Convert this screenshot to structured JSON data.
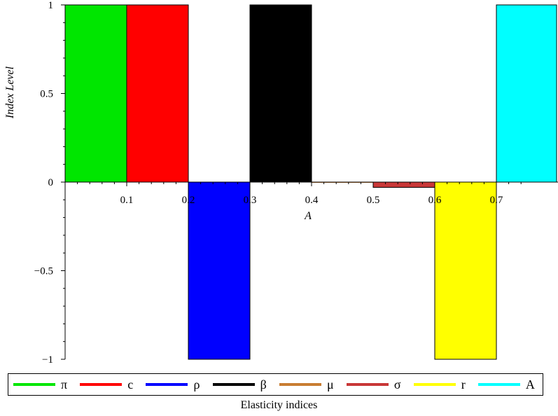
{
  "chart_data": {
    "type": "bar",
    "xlabel": "A",
    "ylabel": "Index Level",
    "xlim": [
      0,
      0.75
    ],
    "ylim": [
      -1,
      1
    ],
    "x_ticks": [
      "0.1",
      "0.2",
      "0.3",
      "0.4",
      "0.5",
      "0.6",
      "0.7"
    ],
    "y_ticks": [
      "1",
      "0.5",
      "0",
      "−0.5",
      "−1"
    ],
    "series": [
      {
        "name": "π",
        "x_start": 0.0,
        "x_end": 0.1,
        "value": 1,
        "color": "#00e600"
      },
      {
        "name": "c",
        "x_start": 0.1,
        "x_end": 0.2,
        "value": 1,
        "color": "#ff0000"
      },
      {
        "name": "ρ",
        "x_start": 0.2,
        "x_end": 0.3,
        "value": -1,
        "color": "#0000ff"
      },
      {
        "name": "β",
        "x_start": 0.3,
        "x_end": 0.4,
        "value": 1,
        "color": "#000000"
      },
      {
        "name": "μ",
        "x_start": 0.4,
        "x_end": 0.5,
        "value": 0,
        "color": "#c87d32"
      },
      {
        "name": "σ",
        "x_start": 0.5,
        "x_end": 0.6,
        "value": -0.03,
        "color": "#c83737"
      },
      {
        "name": "r",
        "x_start": 0.6,
        "x_end": 0.7,
        "value": -1,
        "color": "#ffff00"
      },
      {
        "name": "A",
        "x_start": 0.7,
        "x_end": 0.8,
        "value": 1,
        "color": "#00ffff"
      }
    ],
    "legend_title": "Elasticity indices",
    "legend_position": "bottom"
  }
}
